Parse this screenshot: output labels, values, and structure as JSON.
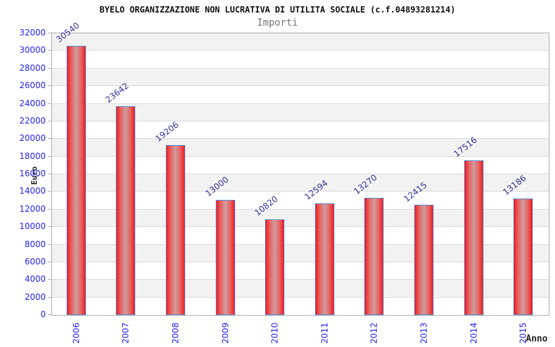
{
  "chart_data": {
    "type": "bar",
    "title": "BYELO ORGANIZZAZIONE NON LUCRATIVA DI UTILITA SOCIALE (c.f.04893281214)",
    "subtitle": "Importi",
    "xlabel": "Anno",
    "ylabel": "Euro",
    "categories": [
      "2006",
      "2007",
      "2008",
      "2009",
      "2010",
      "2011",
      "2012",
      "2013",
      "2014",
      "2015"
    ],
    "values": [
      30540,
      23642,
      19206,
      13000,
      10820,
      12594,
      13270,
      12415,
      17516,
      13186
    ],
    "ylim": [
      0,
      32000
    ],
    "ytick_step": 2000,
    "ytick_labels": [
      "0",
      "2000",
      "4000",
      "6000",
      "8000",
      "10000",
      "12000",
      "14000",
      "16000",
      "18000",
      "20000",
      "22000",
      "24000",
      "26000",
      "28000",
      "30000",
      "32000"
    ],
    "grid": "horizontal",
    "legend_position": "none",
    "colors": {
      "bar_edge_red": "#f21b1b",
      "bar_mid_red": "#e96060",
      "bar_center_highlight": "#cf9c9c",
      "bar_border": "#5b8dd9",
      "axis_number_blue": "#2222ee",
      "value_label_navy": "#333399",
      "band_white": "#ffffff",
      "band_gray": "#f2f2f2",
      "gridline_gray": "#dadada",
      "plot_border_gray": "#b0b0b0"
    }
  }
}
